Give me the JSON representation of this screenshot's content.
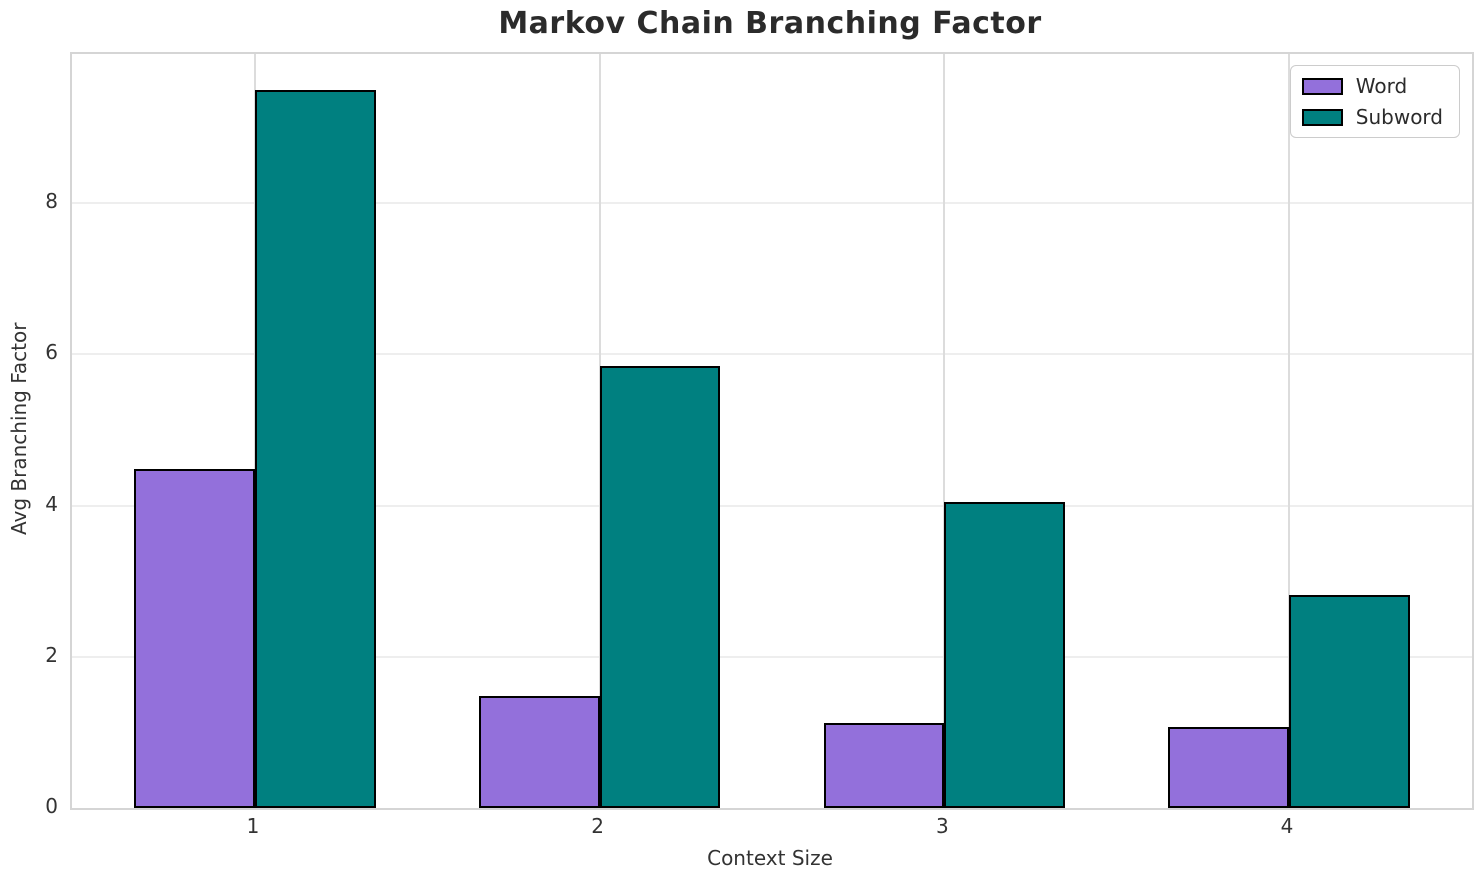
{
  "chart_data": {
    "type": "bar",
    "title": "Markov Chain Branching Factor",
    "xlabel": "Context Size",
    "ylabel": "Avg Branching Factor",
    "categories": [
      "1",
      "2",
      "3",
      "4"
    ],
    "series": [
      {
        "name": "Word",
        "color": "#9370DB",
        "values": [
          4.48,
          1.48,
          1.13,
          1.07
        ]
      },
      {
        "name": "Subword",
        "color": "#008080",
        "values": [
          9.5,
          5.85,
          4.05,
          2.82
        ]
      }
    ],
    "bar_edge_color": "#000000",
    "bar_width_units": 0.35,
    "yticks": [
      0,
      2,
      4,
      6,
      8
    ],
    "ylim": [
      0,
      9.975
    ],
    "xlim": [
      -0.531,
      3.531
    ],
    "grid": true,
    "legend_position": "upper right"
  },
  "colors": {
    "background": "#ffffff",
    "title_text": "#2b2b2b",
    "tick_text": "#333333",
    "grid_horizontal": "#eeeeee",
    "grid_vertical": "#dcdcdc",
    "spine": "#d5d5d5",
    "legend_border": "#cccccc"
  }
}
